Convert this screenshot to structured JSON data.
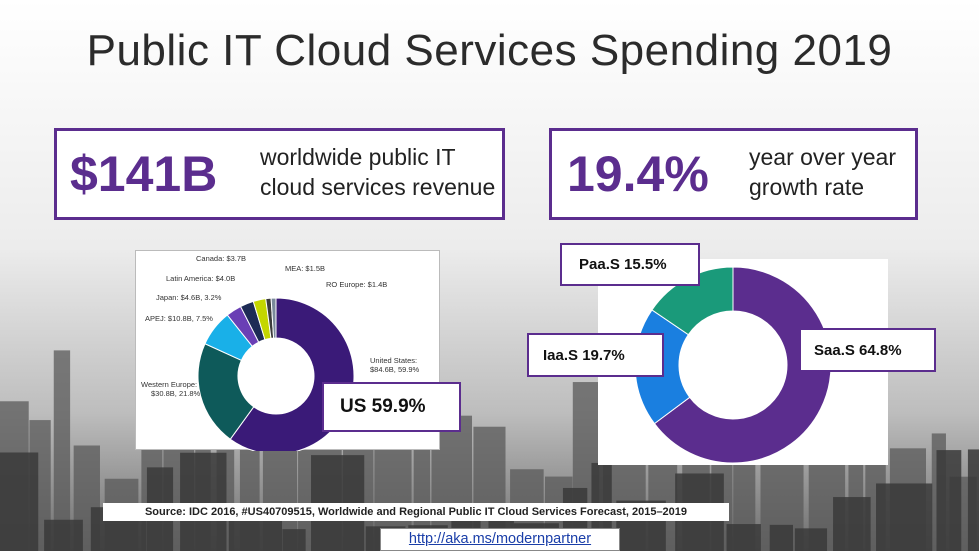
{
  "title": "Public IT Cloud Services Spending 2019",
  "stats": [
    {
      "value": "$141B",
      "description_line1": "worldwide public IT",
      "description_line2": "cloud services revenue"
    },
    {
      "value": "19.4%",
      "description_line1": "year over year",
      "description_line2": "growth rate"
    }
  ],
  "colors": {
    "accent": "#5b2d8e",
    "teal": "#0e5a5a",
    "cyan": "#19b0e8",
    "blue": "#1a7fe0",
    "green": "#1a9a7a",
    "yellowgreen": "#c4d600",
    "navy": "#1d2b55"
  },
  "chart_data": [
    {
      "type": "pie",
      "variant": "donut",
      "title": "",
      "slices": [
        {
          "label": "United States:",
          "value_label": "$84.6B, 59.9%",
          "value": 59.9,
          "color": "#3a1a78"
        },
        {
          "label": "Western Europe:",
          "value_label": "$30.8B, 21.8%",
          "value": 21.8,
          "color": "#0e5a5a"
        },
        {
          "label": "APEJ: $10.8B, 7.5%",
          "value_label": "",
          "value": 7.5,
          "color": "#19b0e8"
        },
        {
          "label": "Japan: $4.6B, 3.2%",
          "value_label": "",
          "value": 3.2,
          "color": "#6a3fb5"
        },
        {
          "label": "Latin America: $4.0B",
          "value_label": "",
          "value": 2.8,
          "color": "#1d2b55"
        },
        {
          "label": "Canada: $3.7B",
          "value_label": "",
          "value": 2.6,
          "color": "#c4d600"
        },
        {
          "label": "MEA: $1.5B",
          "value_label": "",
          "value": 1.1,
          "color": "#3c3c3c"
        },
        {
          "label": "RO Europe: $1.4B",
          "value_label": "",
          "value": 1.0,
          "color": "#7a8a9a"
        }
      ],
      "callout": "US 59.9%"
    },
    {
      "type": "pie",
      "variant": "donut",
      "title": "",
      "slices": [
        {
          "label": "SaaS 64.8%",
          "value": 64.8,
          "color": "#5b2d8e"
        },
        {
          "label": "IaaS 19.7%",
          "value": 19.7,
          "color": "#1a7fe0"
        },
        {
          "label": "PaaS 15.5%",
          "value": 15.5,
          "color": "#1a9a7a"
        }
      ],
      "callouts": [
        "Paa.S 15.5%",
        "Iaa.S 19.7%",
        "Saa.S 64.8%"
      ]
    }
  ],
  "footer": {
    "source": "Source: IDC 2016, #US40709515, Worldwide and Regional Public IT Cloud Services Forecast, 2015–2019",
    "link": "http://aka.ms/modernpartner"
  }
}
